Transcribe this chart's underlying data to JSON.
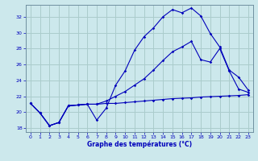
{
  "title": "Graphe des températures (°C)",
  "bg_color": "#cce8ec",
  "grid_color": "#aacccc",
  "line_color": "#0000bb",
  "xlim": [
    -0.5,
    23.5
  ],
  "ylim": [
    17.5,
    33.5
  ],
  "yticks": [
    18,
    20,
    22,
    24,
    26,
    28,
    30,
    32
  ],
  "xticks": [
    0,
    1,
    2,
    3,
    4,
    5,
    6,
    7,
    8,
    9,
    10,
    11,
    12,
    13,
    14,
    15,
    16,
    17,
    18,
    19,
    20,
    21,
    22,
    23
  ],
  "line1_x": [
    0,
    1,
    2,
    3,
    4,
    5,
    6,
    7,
    8,
    9,
    10,
    11,
    12,
    13,
    14,
    15,
    16,
    17,
    18,
    19,
    20,
    21,
    22,
    23
  ],
  "line1_y": [
    21.1,
    19.9,
    18.3,
    18.7,
    20.8,
    20.9,
    21.0,
    21.0,
    21.1,
    21.1,
    21.2,
    21.3,
    21.4,
    21.5,
    21.6,
    21.7,
    21.75,
    21.8,
    21.9,
    21.95,
    22.0,
    22.05,
    22.1,
    22.2
  ],
  "line2_x": [
    0,
    1,
    2,
    3,
    4,
    5,
    6,
    7,
    8,
    9,
    10,
    11,
    12,
    13,
    14,
    15,
    16,
    17,
    18,
    19,
    20,
    21,
    22,
    23
  ],
  "line2_y": [
    21.1,
    19.9,
    18.3,
    18.7,
    20.8,
    20.9,
    21.0,
    19.0,
    20.5,
    23.4,
    25.2,
    27.8,
    29.5,
    30.6,
    32.0,
    32.9,
    32.5,
    33.1,
    32.1,
    29.9,
    28.2,
    25.3,
    24.4,
    22.8
  ],
  "line3_x": [
    0,
    1,
    2,
    3,
    4,
    5,
    6,
    7,
    8,
    9,
    10,
    11,
    12,
    13,
    14,
    15,
    16,
    17,
    18,
    19,
    20,
    21,
    22,
    23
  ],
  "line3_y": [
    21.1,
    19.9,
    18.3,
    18.7,
    20.8,
    20.9,
    21.0,
    21.0,
    21.4,
    22.0,
    22.6,
    23.4,
    24.2,
    25.3,
    26.5,
    27.6,
    28.2,
    28.9,
    26.6,
    26.3,
    28.0,
    25.2,
    22.9,
    22.5
  ]
}
